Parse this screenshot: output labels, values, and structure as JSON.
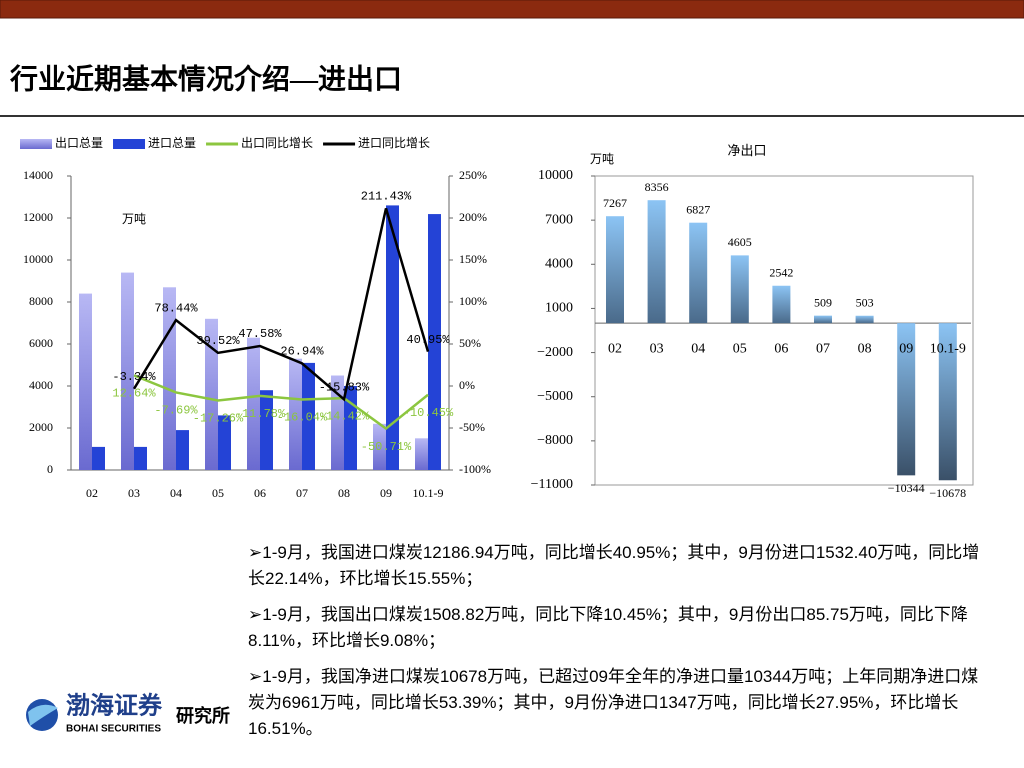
{
  "header": {
    "title": "行业近期基本情况介绍—进出口"
  },
  "chart_data": [
    {
      "type": "bar",
      "annotation": "万吨",
      "categories": [
        "02",
        "03",
        "04",
        "05",
        "06",
        "07",
        "08",
        "09",
        "10.1-9"
      ],
      "series": [
        {
          "name": "出口总量",
          "type": "bar",
          "color": "#8c8ce6",
          "values": [
            8400,
            9400,
            8700,
            7200,
            6300,
            5300,
            4500,
            2200,
            1509
          ]
        },
        {
          "name": "进口总量",
          "type": "bar",
          "color": "#2443d6",
          "values": [
            1100,
            1100,
            1900,
            2600,
            3800,
            5100,
            4000,
            12600,
            12187
          ]
        },
        {
          "name": "出口同比增长",
          "type": "line",
          "axis": "y2",
          "color": "#8cc63f",
          "values": [
            null,
            12.64,
            -7.69,
            -17.26,
            -11.78,
            -16.04,
            -14.42,
            -50.71,
            -10.45
          ],
          "value_labels": [
            null,
            "12.64%",
            "-7.69%",
            "-17.26%",
            "-11.78%",
            "-16.04%",
            "-14.42%",
            "-50.71%",
            "-10.45%"
          ]
        },
        {
          "name": "进口同比增长",
          "type": "line",
          "axis": "y2",
          "color": "#000000",
          "values": [
            null,
            -3.34,
            78.44,
            39.52,
            47.58,
            26.94,
            -15.83,
            211.43,
            40.95
          ],
          "value_labels": [
            null,
            "-3.34%",
            "78.44%",
            "39.52%",
            "47.58%",
            "26.94%",
            "-15.83%",
            "211.43%",
            "40.95%"
          ]
        }
      ],
      "ylim": [
        0,
        14000
      ],
      "yticks": [
        0,
        2000,
        4000,
        6000,
        8000,
        10000,
        12000,
        14000
      ],
      "y2lim": [
        -100,
        250
      ],
      "y2ticks": [
        {
          "value": -100,
          "label": "-100%"
        },
        {
          "value": -50,
          "label": "-50%"
        },
        {
          "value": 0,
          "label": "0%"
        },
        {
          "value": 50,
          "label": "50%"
        },
        {
          "value": 100,
          "label": "100%"
        },
        {
          "value": 150,
          "label": "150%"
        },
        {
          "value": 200,
          "label": "200%"
        },
        {
          "value": 250,
          "label": "250%"
        }
      ],
      "legend": "top"
    },
    {
      "type": "bar",
      "title": "净出口",
      "annotation": "万吨",
      "categories": [
        "02",
        "03",
        "04",
        "05",
        "06",
        "07",
        "08",
        "09",
        "10.1-9"
      ],
      "values": [
        7267,
        8356,
        6827,
        4605,
        2542,
        509,
        503,
        -10344,
        -10678
      ],
      "value_labels": [
        "7267",
        "8356",
        "6827",
        "4605",
        "2542",
        "509",
        "503",
        "−10344",
        "−10678"
      ],
      "color": "#7fb8ee",
      "ylim": [
        -11000,
        10000
      ],
      "yticks": [
        {
          "value": -11000,
          "label": "−11000"
        },
        {
          "value": -8000,
          "label": "−8000"
        },
        {
          "value": -5000,
          "label": "−5000"
        },
        {
          "value": -2000,
          "label": "−2000"
        },
        1000,
        4000,
        7000,
        10000
      ]
    }
  ],
  "bullets": [
    "1-9月，我国进口煤炭12186.94万吨，同比增长40.95%；其中，9月份进口1532.40万吨，同比增长22.14%，环比增长15.55%；",
    "1-9月，我国出口煤炭1508.82万吨，同比下降10.45%；其中，9月份出口85.75万吨，同比下降8.11%，环比增长9.08%；",
    "1-9月，我国净进口煤炭10678万吨，已超过09年全年的净进口量10344万吨；上年同期净进口煤炭为6961万吨，同比增长53.39%；其中，9月份净进口1347万吨，同比增长27.95%，环比增长16.51%。"
  ],
  "logo": {
    "name": "渤海证券",
    "english": "BOHAI SECURITIES",
    "unit": "研究所"
  }
}
